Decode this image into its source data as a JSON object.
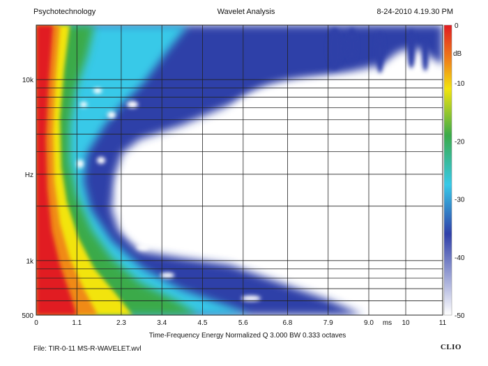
{
  "header": {
    "left": "Psychotechnology",
    "center": "Wavelet Analysis",
    "right": "8-24-2010 4.19.30 PM"
  },
  "footer": {
    "caption": "Time-Frequency Energy  Normalized  Q 3.000 BW 0.333 octaves",
    "file": "File: TIR-0-11 MS-R-WAVELET.wvl",
    "brand": "CLIO"
  },
  "colors": {
    "plot_background": "#ffffff",
    "grid": "#222222",
    "colorscale": [
      "#ffffff",
      "#2f3fa8",
      "#38c9e8",
      "#3aaa4a",
      "#f2e40e",
      "#f08a18",
      "#e11b22"
    ]
  },
  "chart_data": {
    "type": "heatmap",
    "title": "Wavelet Analysis",
    "subtitle": "Time-Frequency Energy  Normalized  Q 3.000 BW 0.333 octaves",
    "x_unit": "ms",
    "y_unit": "Hz",
    "colorbar_unit": "dB",
    "x_ticks": [
      "0",
      "1.1",
      "2.3",
      "3.4",
      "4.5",
      "5.6",
      "6.8",
      "7.9",
      "9.0",
      "ms",
      "10",
      "11"
    ],
    "x_tick_values": [
      0,
      1.1,
      2.3,
      3.4,
      4.5,
      5.6,
      6.8,
      7.9,
      9.0,
      9.5,
      10,
      11
    ],
    "xlim": [
      0,
      11
    ],
    "y_ticks": [
      "10k",
      "Hz",
      "1k",
      "500"
    ],
    "y_tick_values": [
      10000,
      3000,
      1000,
      500
    ],
    "ylim": [
      500,
      20000
    ],
    "y_scale": "log",
    "colorbar_ticks": [
      "0",
      "-10",
      "-20",
      "-30",
      "-40",
      "-50"
    ],
    "colorbar_values": [
      0,
      -10,
      -20,
      -30,
      -40,
      -50
    ],
    "colorbar_range": [
      -50,
      0
    ],
    "grid": true,
    "energy_decay_edge_ms": {
      "0dB_red": [
        [
          20000,
          0.45
        ],
        [
          10000,
          0.5
        ],
        [
          3000,
          0.75
        ],
        [
          1000,
          1.1
        ],
        [
          500,
          1.8
        ]
      ],
      "-20dB_green": [
        [
          20000,
          1.2
        ],
        [
          10000,
          1.1
        ],
        [
          3000,
          1.3
        ],
        [
          1000,
          2.6
        ],
        [
          500,
          4.2
        ]
      ],
      "-40dB_blue": [
        [
          20000,
          11
        ],
        [
          10000,
          5.5
        ],
        [
          3000,
          2.4
        ],
        [
          1000,
          4.8
        ],
        [
          700,
          7.5
        ],
        [
          500,
          9.0
        ]
      ]
    }
  }
}
